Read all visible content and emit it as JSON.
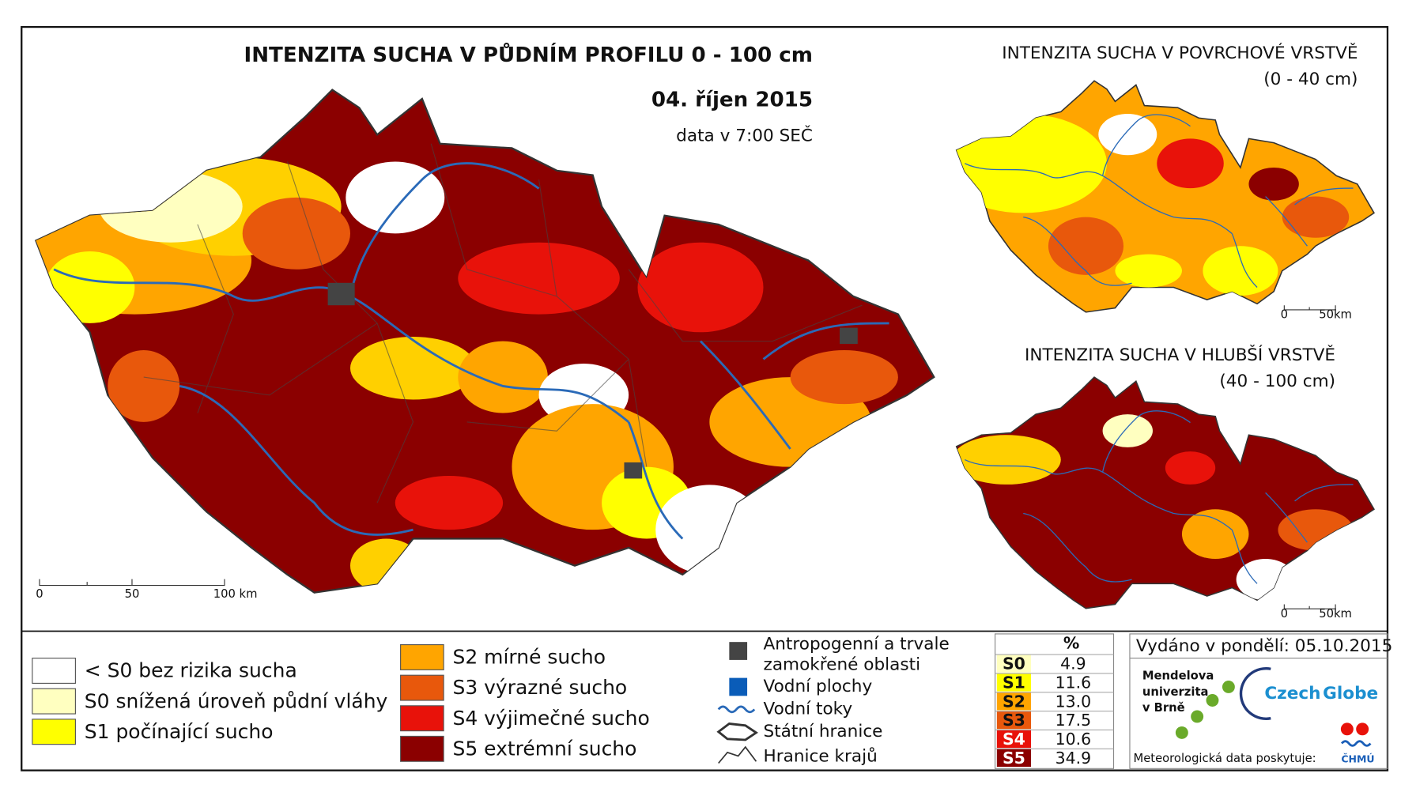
{
  "main": {
    "title": "INTENZITA SUCHA V PŮDNÍM PROFILU 0 - 100 cm",
    "date": "04. říjen 2015",
    "time_note": "data v 7:00 SEČ",
    "scale": [
      "0",
      "50",
      "100 km"
    ]
  },
  "insets": [
    {
      "title": "INTENZITA SUCHA V POVRCHOVÉ VRSTVĚ",
      "subtitle": "(0 - 40 cm)",
      "scale": [
        "0",
        "50km"
      ]
    },
    {
      "title": "INTENZITA SUCHA V HLUBŠÍ VRSTVĚ",
      "subtitle": "(40 - 100 cm)",
      "scale": [
        "0",
        "50km"
      ]
    }
  ],
  "legend": {
    "classes": [
      {
        "label": "< S0 bez rizika sucha",
        "color": "#ffffff"
      },
      {
        "label": "S0 snížená úroveň půdní vláhy",
        "color": "#ffffc0"
      },
      {
        "label": "S1 počínající sucho",
        "color": "#ffff00"
      },
      {
        "label": "S2 mírné sucho",
        "color": "#ffa500"
      },
      {
        "label": "S3 výrazné sucho",
        "color": "#e8580c"
      },
      {
        "label": "S4 výjimečné sucho",
        "color": "#e8120a"
      },
      {
        "label": "S5 extrémní sucho",
        "color": "#8b0000"
      }
    ],
    "symbols": {
      "anthropogenic": [
        "Antropogenní a trvale",
        "zamokřené oblasti"
      ],
      "water_bodies": "Vodní plochy",
      "rivers": "Vodní toky",
      "state_border": "Státní hranice",
      "regions": "Hranice krajů"
    }
  },
  "table": {
    "header": "%",
    "rows": [
      [
        "S0",
        "4.9"
      ],
      [
        "S1",
        "11.6"
      ],
      [
        "S2",
        "13.0"
      ],
      [
        "S3",
        "17.5"
      ],
      [
        "S4",
        "10.6"
      ],
      [
        "S5",
        "34.9"
      ]
    ]
  },
  "issued": "Vydáno v pondělí: 05.10.2015",
  "logos": {
    "mendel": [
      "Mendelova",
      "univerzita",
      "v Brně"
    ],
    "czechglobe": [
      "Czech",
      "Globe"
    ],
    "provider": "Meteorologická data poskytuje:",
    "chmu": "ČHMÚ"
  }
}
